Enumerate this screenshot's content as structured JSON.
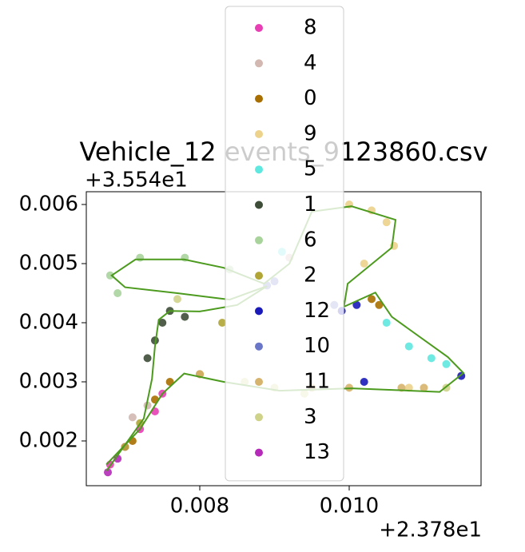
{
  "chart_data": {
    "type": "scatter",
    "title": "Vehicle_12 events_9123860.csv",
    "x_offset_label": "+2.378e1",
    "y_offset_label": "+3.554e1",
    "xlim": [
      0.006481,
      0.011765
    ],
    "ylim": [
      0.001243,
      0.006216
    ],
    "xticks": [
      0.008,
      {
        "value": 0.01,
        "label": "0.010"
      }
    ],
    "yticks": [
      0.002,
      0.003,
      0.004,
      0.005,
      0.006
    ],
    "legend": "upper center",
    "track": {
      "color": "#4c9a1e",
      "x": [
        0.00675,
        0.00725,
        0.00736,
        0.0074,
        0.00745,
        0.0076,
        0.008,
        0.0085,
        0.0089,
        0.0084,
        0.0077,
        0.007,
        0.00682,
        0.00714,
        0.00779,
        0.00832,
        0.00886,
        0.0092,
        0.0095,
        0.01003,
        0.01062,
        0.01057,
        0.00998,
        0.00993,
        0.01035,
        0.01057,
        0.01132,
        0.01153,
        0.01121,
        0.01003,
        0.00907,
        0.00832,
        0.00779,
        0.0075,
        0.0072,
        0.00675
      ],
      "y": [
        0.00149,
        0.00238,
        0.00305,
        0.0036,
        0.00405,
        0.0042,
        0.00419,
        0.0043,
        0.00462,
        0.00439,
        0.0045,
        0.0046,
        0.0048,
        0.00507,
        0.00507,
        0.00493,
        0.00466,
        0.005,
        0.00588,
        0.00597,
        0.00574,
        0.00527,
        0.00466,
        0.00427,
        0.00451,
        0.0041,
        0.00342,
        0.00315,
        0.00283,
        0.00289,
        0.00285,
        0.003,
        0.00314,
        0.0028,
        0.0022,
        0.0016
      ]
    },
    "series": [
      {
        "name": "8",
        "color": "#e83fb4",
        "x": [
          0.0068,
          0.007,
          0.0072,
          0.0074,
          0.0075
        ],
        "values": [
          0.0016,
          0.0019,
          0.0022,
          0.0025,
          0.0028
        ]
      },
      {
        "name": "4",
        "color": "#d2b8b0",
        "x": [
          0.0071,
          0.0073,
          0.0092
        ],
        "values": [
          0.0024,
          0.0026,
          0.0051
        ]
      },
      {
        "name": "0",
        "color": "#a86f00",
        "x": [
          0.0071,
          0.0074,
          0.0076,
          0.008,
          0.0103,
          0.0104
        ],
        "values": [
          0.002,
          0.0027,
          0.003,
          0.00313,
          0.0044,
          0.0043
        ]
      },
      {
        "name": "9",
        "color": "#ecd28b",
        "x": [
          0.01,
          0.0103,
          0.0105,
          0.0106,
          0.0102,
          0.0108
        ],
        "values": [
          0.006,
          0.0059,
          0.0057,
          0.0053,
          0.005,
          0.0029
        ]
      },
      {
        "name": "5",
        "color": "#5ee8e0",
        "x": [
          0.0105,
          0.0108,
          0.0111,
          0.0113,
          0.0091
        ],
        "values": [
          0.004,
          0.0036,
          0.0034,
          0.0033,
          0.0052
        ]
      },
      {
        "name": "1",
        "color": "#3e4d38",
        "x": [
          0.0073,
          0.0074,
          0.0075,
          0.0076,
          0.0078
        ],
        "values": [
          0.0034,
          0.0037,
          0.004,
          0.0042,
          0.0041
        ]
      },
      {
        "name": "6",
        "color": "#a8d49c",
        "x": [
          0.0068,
          0.0072,
          0.0078,
          0.0084,
          0.0069
        ],
        "values": [
          0.0048,
          0.0051,
          0.0051,
          0.0049,
          0.0045
        ]
      },
      {
        "name": "2",
        "color": "#b0a535",
        "x": [
          0.007,
          0.0072,
          0.0083
        ],
        "values": [
          0.0019,
          0.0023,
          0.004
        ]
      },
      {
        "name": "12",
        "color": "#1a1aba",
        "x": [
          0.0099,
          0.0101,
          0.0115,
          0.0102
        ],
        "values": [
          0.0042,
          0.0043,
          0.0031,
          0.003
        ]
      },
      {
        "name": "10",
        "color": "#6a76c8",
        "x": [
          0.0089,
          0.009,
          0.0098
        ],
        "values": [
          0.00463,
          0.0047,
          0.0043
        ]
      },
      {
        "name": "11",
        "color": "#d6b46e",
        "x": [
          0.008,
          0.0095,
          0.01,
          0.0107,
          0.011
        ],
        "values": [
          0.00313,
          0.0029,
          0.0029,
          0.0029,
          0.0029
        ]
      },
      {
        "name": "3",
        "color": "#cfd38a",
        "x": [
          0.0086,
          0.009,
          0.0094,
          0.0113,
          0.0077
        ],
        "values": [
          0.003,
          0.0029,
          0.0028,
          0.0029,
          0.0044
        ]
      },
      {
        "name": "13",
        "color": "#b52ab8",
        "x": [
          0.00677,
          0.0069
        ],
        "values": [
          0.00147,
          0.0017
        ]
      }
    ]
  }
}
